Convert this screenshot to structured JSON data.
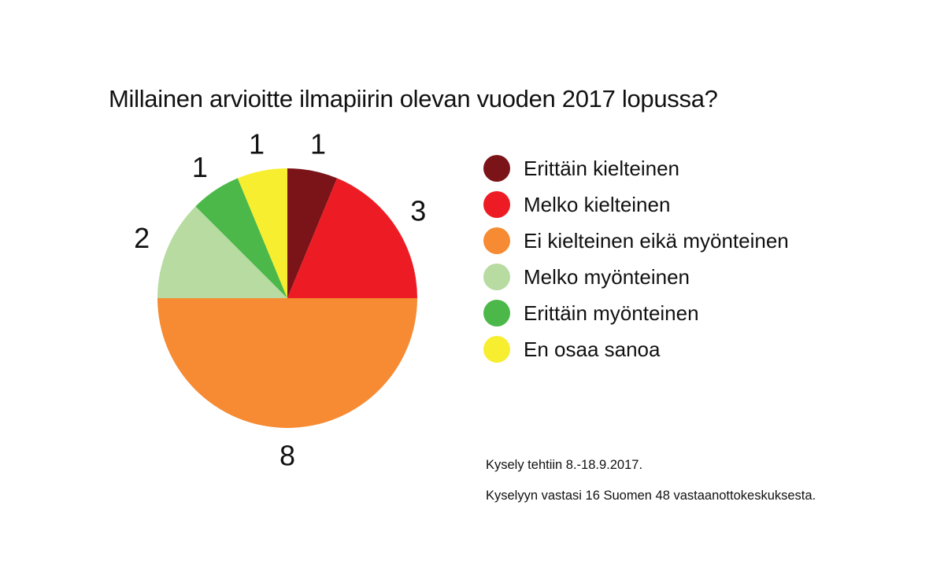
{
  "chart_data": {
    "type": "pie",
    "title": "Millainen arvioitte ilmapiirin olevan vuoden 2017 lopussa?",
    "legend_position": "right",
    "slices": [
      {
        "label": "Erittäin kielteinen",
        "value": 1,
        "color": "#7b1419"
      },
      {
        "label": "Melko kielteinen",
        "value": 3,
        "color": "#ed1c24"
      },
      {
        "label": "Ei kielteinen eikä myönteinen",
        "value": 8,
        "color": "#f68b33"
      },
      {
        "label": "Melko myönteinen",
        "value": 2,
        "color": "#b7dba0"
      },
      {
        "label": "Erittäin myönteinen",
        "value": 1,
        "color": "#4db84a"
      },
      {
        "label": "En osaa sanoa",
        "value": 1,
        "color": "#f7ee2f"
      }
    ]
  },
  "notes": [
    "Kysely tehtiin 8.-18.9.2017.",
    "Kyselyyn vastasi 16 Suomen 48 vastaanottokeskuksesta."
  ]
}
